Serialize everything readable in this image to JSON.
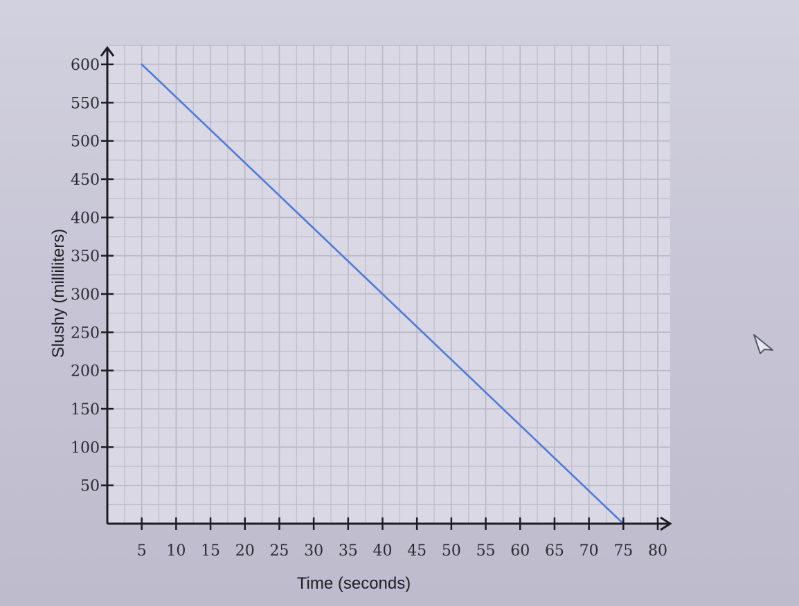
{
  "chart_data": {
    "type": "line",
    "xlabel": "Time (seconds)",
    "ylabel": "Slushy (milliliters)",
    "xlim": [
      0,
      80
    ],
    "ylim": [
      0,
      600
    ],
    "x_ticks": [
      5,
      10,
      15,
      20,
      25,
      30,
      35,
      40,
      45,
      50,
      55,
      60,
      65,
      70,
      75,
      80
    ],
    "y_ticks": [
      50,
      100,
      150,
      200,
      250,
      300,
      350,
      400,
      450,
      500,
      550,
      600
    ],
    "grid": true,
    "series": [
      {
        "x": [
          5,
          75
        ],
        "y": [
          600,
          0
        ]
      }
    ],
    "colors": {
      "line": "#4f7bd6",
      "axis": "#1c1c22",
      "grid": "#b8b8c6",
      "plot_bg": "#d9d8e4"
    }
  },
  "icons": {
    "cursor": "mouse-pointer-icon"
  }
}
